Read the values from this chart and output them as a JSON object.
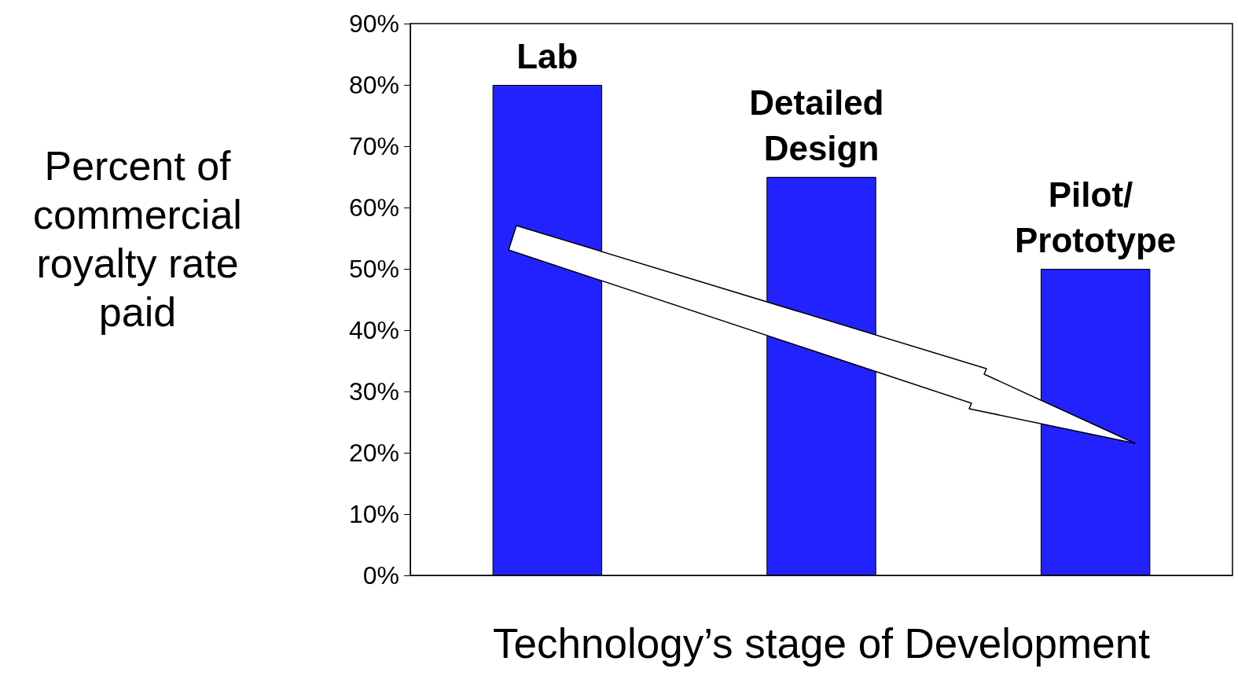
{
  "chart_data": {
    "type": "bar",
    "categories": [
      "Lab",
      "Detailed Design",
      "Pilot/ Prototype"
    ],
    "values": [
      80,
      65,
      50
    ],
    "color": "#2222ff",
    "ylabel": "Percent of commercial royalty rate paid",
    "xlabel": "Technology’s stage of Development",
    "ylim": [
      0,
      90
    ],
    "yticks": [
      {
        "value": 0,
        "label": "0%"
      },
      {
        "value": 10,
        "label": "10%"
      },
      {
        "value": 20,
        "label": "20%"
      },
      {
        "value": 30,
        "label": "30%"
      },
      {
        "value": 40,
        "label": "40%"
      },
      {
        "value": 50,
        "label": "50%"
      },
      {
        "value": 60,
        "label": "60%"
      },
      {
        "value": 70,
        "label": "70%"
      },
      {
        "value": 80,
        "label": "80%"
      },
      {
        "value": 90,
        "label": "90%"
      }
    ],
    "grid": false,
    "tick_labels": "y"
  }
}
